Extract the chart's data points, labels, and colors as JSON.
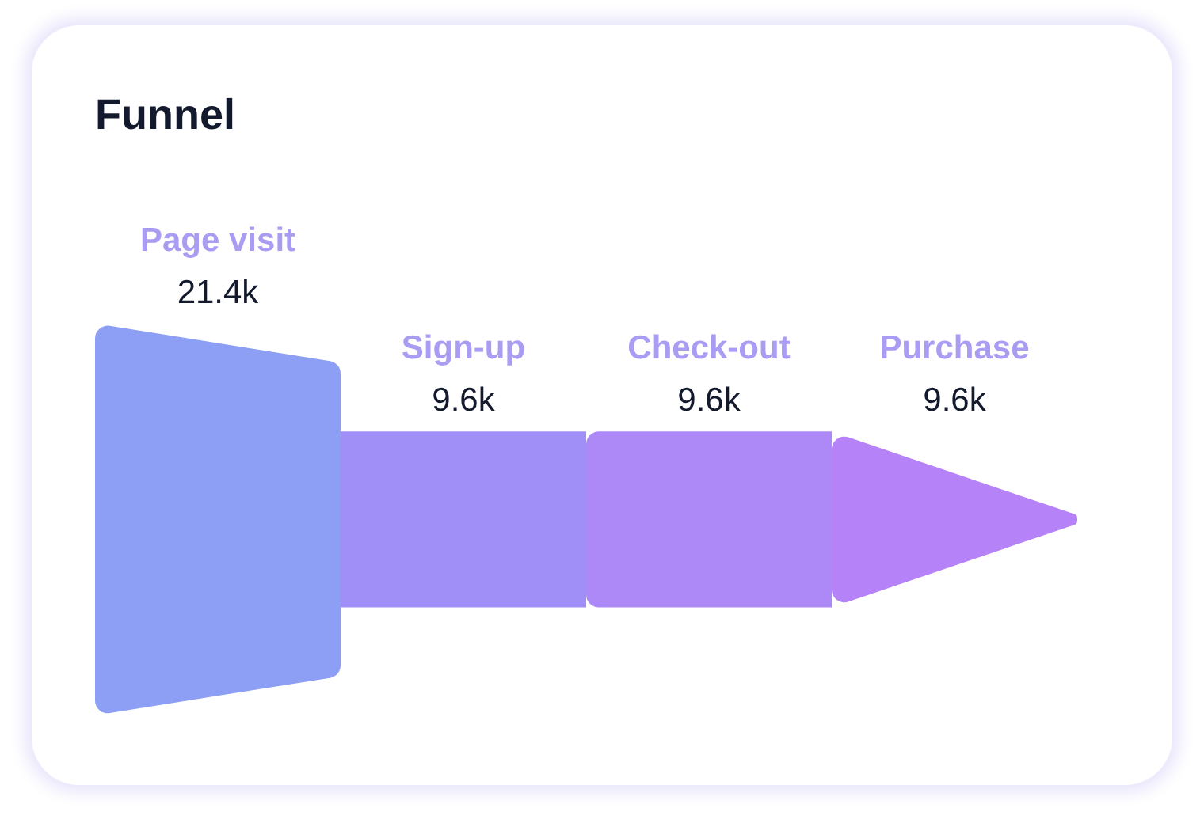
{
  "chart_data": {
    "type": "other",
    "title": "Funnel",
    "categories": [
      "Page visit",
      "Sign-up",
      "Check-out",
      "Purchase"
    ],
    "values": [
      21400,
      9600,
      9600,
      9600
    ],
    "value_labels": [
      "21.4k",
      "9.6k",
      "9.6k",
      "9.6k"
    ],
    "colors": [
      "#8c9ff5",
      "#a08ff6",
      "#ad88f7",
      "#b682f8"
    ]
  }
}
